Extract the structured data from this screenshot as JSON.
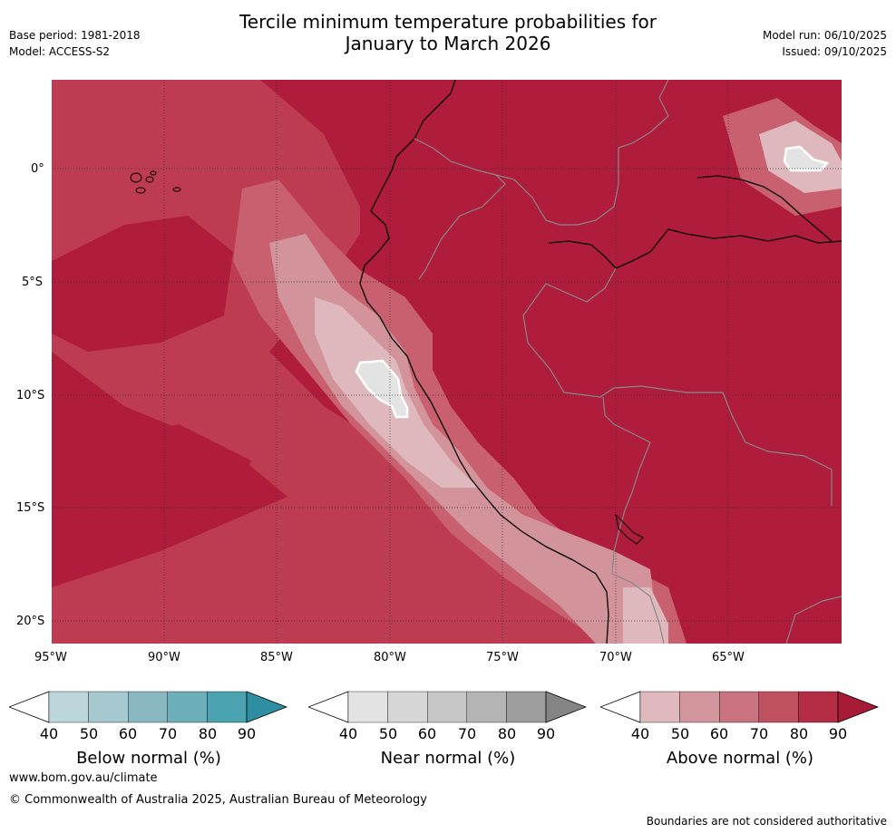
{
  "header": {
    "title_line1": "Tercile minimum temperature probabilities for",
    "title_line2": "January to March 2026",
    "base_period": "Base period: 1981-2018",
    "model": "Model: ACCESS-S2",
    "model_run": "Model run: 06/10/2025",
    "issued": "Issued: 09/10/2025"
  },
  "map": {
    "lat_labels": [
      "0°",
      "5°S",
      "10°S",
      "15°S",
      "20°S"
    ],
    "lon_labels": [
      "95°W",
      "90°W",
      "85°W",
      "80°W",
      "75°W",
      "70°W",
      "65°W"
    ]
  },
  "colorbars": [
    {
      "label": "Below normal (%)",
      "ticks": [
        "40",
        "50",
        "60",
        "70",
        "80",
        "90"
      ],
      "colors": [
        "#ffffff",
        "#bdd6dc",
        "#a6c9d0",
        "#89b8c3",
        "#6daebb",
        "#4ba3b1",
        "#2e8ea2"
      ]
    },
    {
      "label": "Near normal (%)",
      "ticks": [
        "40",
        "50",
        "60",
        "70",
        "80",
        "90"
      ],
      "colors": [
        "#ffffff",
        "#e3e3e3",
        "#d6d6d6",
        "#c7c7c7",
        "#b4b4b4",
        "#9e9e9e",
        "#858585"
      ]
    },
    {
      "label": "Above normal (%)",
      "ticks": [
        "40",
        "50",
        "60",
        "70",
        "80",
        "90"
      ],
      "colors": [
        "#ffffff",
        "#e0b9be",
        "#d3969d",
        "#c97480",
        "#c0515f",
        "#b52d45",
        "#a81b37"
      ]
    }
  ],
  "footer": {
    "url": "www.bom.gov.au/climate",
    "copyright": "© Commonwealth of Australia 2025, Australian Bureau of Meteorology",
    "disclaimer": "Boundaries are not considered authoritative"
  }
}
